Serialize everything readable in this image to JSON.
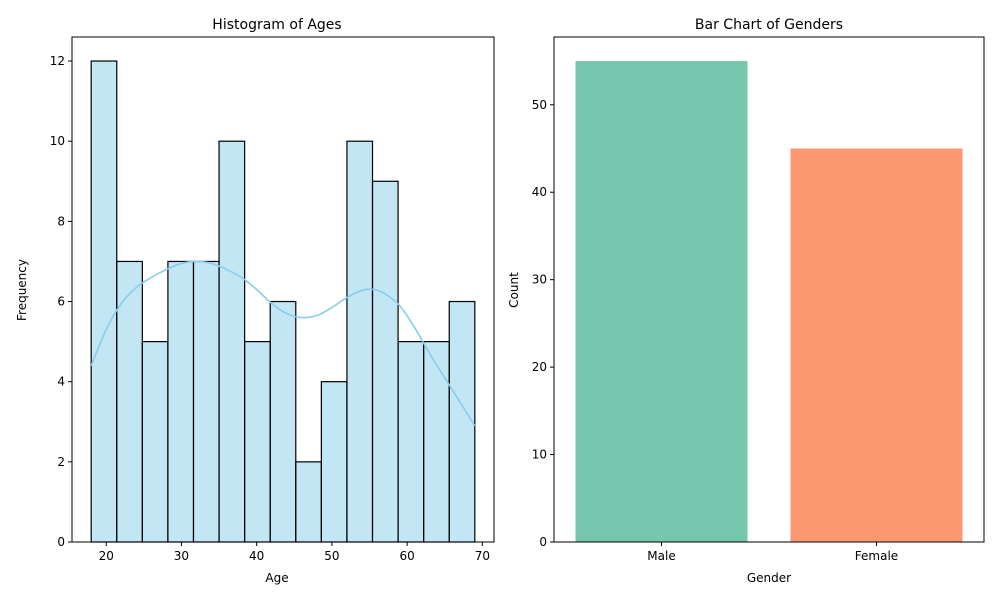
{
  "chart_data": [
    {
      "type": "bar",
      "title": "Histogram of Ages",
      "xlabel": "Age",
      "ylabel": "Frequency",
      "xlim": [
        15.45,
        71.55
      ],
      "ylim": [
        0,
        12.6
      ],
      "bin_edges": [
        18,
        21.4,
        24.8,
        28.2,
        31.6,
        35,
        38.4,
        41.8,
        45.2,
        48.6,
        52,
        55.4,
        58.8,
        62.2,
        65.6,
        69
      ],
      "values": [
        12,
        7,
        5,
        7,
        7,
        10,
        5,
        6,
        2,
        4,
        10,
        9,
        5,
        5,
        6
      ],
      "xticks": [
        20,
        30,
        40,
        50,
        60,
        70
      ],
      "yticks": [
        0,
        2,
        4,
        6,
        8,
        10,
        12
      ],
      "bar_color": "#87ceeb",
      "bar_fill_opacity": 0.5,
      "edge_color": "#000000",
      "kde": {
        "x": [
          18,
          20,
          22,
          24,
          26,
          28,
          30,
          32,
          34,
          36,
          38,
          40,
          42,
          44,
          46,
          48,
          50,
          52,
          54,
          55.5,
          57,
          59,
          61,
          63,
          65,
          67,
          69
        ],
        "y": [
          4.4,
          5.3,
          5.95,
          6.35,
          6.6,
          6.8,
          6.95,
          7.0,
          6.95,
          6.8,
          6.6,
          6.3,
          5.95,
          5.7,
          5.6,
          5.65,
          5.85,
          6.1,
          6.28,
          6.3,
          6.2,
          5.9,
          5.35,
          4.7,
          4.1,
          3.5,
          2.9
        ],
        "color": "#87ceeb"
      }
    },
    {
      "type": "bar",
      "title": "Bar Chart of Genders",
      "xlabel": "Gender",
      "ylabel": "Count",
      "categories": [
        "Male",
        "Female"
      ],
      "values": [
        55,
        45
      ],
      "ylim": [
        0,
        57.75
      ],
      "yticks": [
        0,
        10,
        20,
        30,
        40,
        50
      ],
      "colors": [
        "#66c2a5",
        "#fc8d62"
      ]
    }
  ]
}
